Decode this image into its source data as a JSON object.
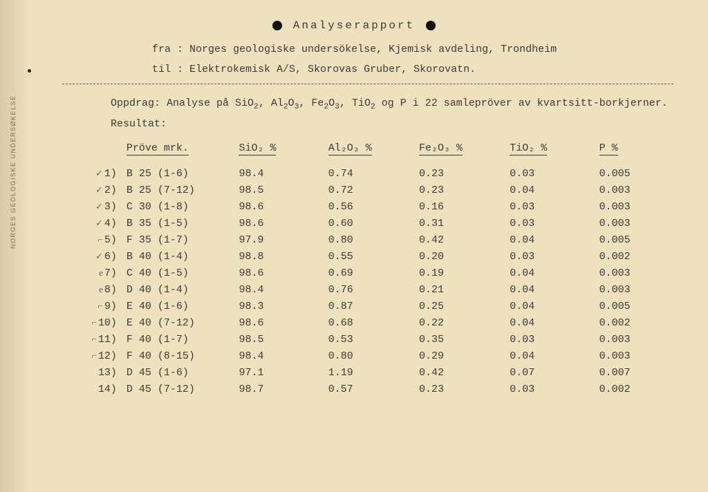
{
  "title_letters": "Analyserapport",
  "meta": {
    "fra_label": "fra :",
    "fra_value": "Norges geologiske undersökelse, Kjemisk avdeling, Trondheim",
    "til_label": "til :",
    "til_value": "Elektrokemisk A/S, Skorovas Gruber, Skorovatn."
  },
  "intro": {
    "line1_a": "Oppdrag:  Analyse på SiO",
    "line1_b": ", Al",
    "line1_c": "O",
    "line1_d": ", Fe",
    "line1_e": "O",
    "line1_f": ", TiO",
    "line1_g": " og P i 22 samlepröver av kvartsitt-borkjerner.",
    "line2": "Resultat:"
  },
  "headers": {
    "sample": "Pröve mrk.",
    "sio2": "SiO₂ %",
    "al2o3": "Al₂O₃ %",
    "fe2o3": "Fe₂O₃ %",
    "tio2": "TiO₂ %",
    "p": "P %"
  },
  "rows": [
    {
      "mark": "✓",
      "idx": "1)",
      "sample": "B 25 (1-6)",
      "sio2": "98.4",
      "al2o3": "0.74",
      "fe2o3": "0.23",
      "tio2": "0.03",
      "p": "0.005"
    },
    {
      "mark": "✓",
      "idx": "2)",
      "sample": "B 25 (7-12)",
      "sio2": "98.5",
      "al2o3": "0.72",
      "fe2o3": "0.23",
      "tio2": "0.04",
      "p": "0.003"
    },
    {
      "mark": "✓",
      "idx": "3)",
      "sample": "C 30 (1-8)",
      "sio2": "98.6",
      "al2o3": "0.56",
      "fe2o3": "0.16",
      "tio2": "0.03",
      "p": "0.003"
    },
    {
      "mark": "✓",
      "idx": "4)",
      "sample": "B 35 (1-5)",
      "sio2": "98.6",
      "al2o3": "0.60",
      "fe2o3": "0.31",
      "tio2": "0.03",
      "p": "0.003"
    },
    {
      "mark": "⌐",
      "idx": "5)",
      "sample": "F 35 (1-7)",
      "sio2": "97.9",
      "al2o3": "0.80",
      "fe2o3": "0.42",
      "tio2": "0.04",
      "p": "0.005"
    },
    {
      "mark": "✓",
      "idx": "6)",
      "sample": "B 40 (1-4)",
      "sio2": "98.8",
      "al2o3": "0.55",
      "fe2o3": "0.20",
      "tio2": "0.03",
      "p": "0.002"
    },
    {
      "mark": "e",
      "idx": "7)",
      "sample": "C 40 (1-5)",
      "sio2": "98.6",
      "al2o3": "0.69",
      "fe2o3": "0.19",
      "tio2": "0.04",
      "p": "0.003"
    },
    {
      "mark": "e",
      "idx": "8)",
      "sample": "D 40 (1-4)",
      "sio2": "98.4",
      "al2o3": "0.76",
      "fe2o3": "0.21",
      "tio2": "0.04",
      "p": "0.003"
    },
    {
      "mark": "⌐",
      "idx": "9)",
      "sample": "E 40 (1-6)",
      "sio2": "98.3",
      "al2o3": "0.87",
      "fe2o3": "0.25",
      "tio2": "0.04",
      "p": "0.005"
    },
    {
      "mark": "⌐",
      "idx": "10)",
      "sample": "E 40 (7-12)",
      "sio2": "98.6",
      "al2o3": "0.68",
      "fe2o3": "0.22",
      "tio2": "0.04",
      "p": "0.002"
    },
    {
      "mark": "⌐",
      "idx": "11)",
      "sample": "F 40 (1-7)",
      "sio2": "98.5",
      "al2o3": "0.53",
      "fe2o3": "0.35",
      "tio2": "0.03",
      "p": "0.003"
    },
    {
      "mark": "⌐",
      "idx": "12)",
      "sample": "F 40 (8-15)",
      "sio2": "98.4",
      "al2o3": "0.80",
      "fe2o3": "0.29",
      "tio2": "0.04",
      "p": "0.003"
    },
    {
      "mark": "",
      "idx": "13)",
      "sample": "D 45 (1-6)",
      "sio2": "97.1",
      "al2o3": "1.19",
      "fe2o3": "0.42",
      "tio2": "0.07",
      "p": "0.007"
    },
    {
      "mark": "",
      "idx": "14)",
      "sample": "D 45 (7-12)",
      "sio2": "98.7",
      "al2o3": "0.57",
      "fe2o3": "0.23",
      "tio2": "0.03",
      "p": "0.002"
    }
  ],
  "side_text": "NORGES GEOLOGISKE UNDERSØKELSE"
}
